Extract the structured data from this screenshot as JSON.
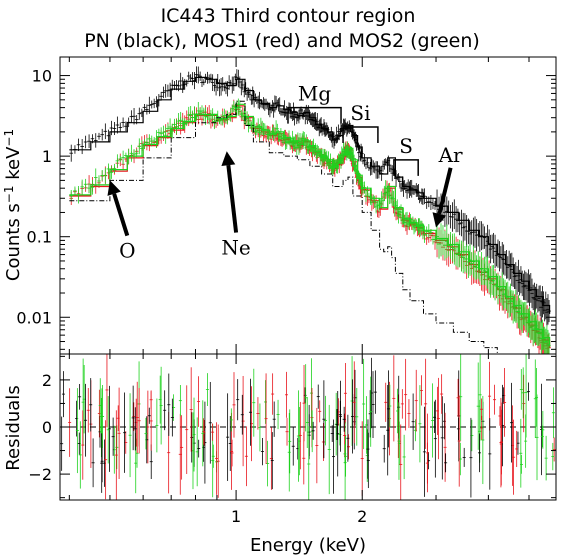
{
  "chart_data": {
    "type": "scatter",
    "title": "IC443 Third contour region",
    "subtitle": "PN (black), MOS1 (red) and MOS2 (green)",
    "xlabel": "Energy (keV)",
    "x_scale": "log",
    "xlim": [
      0.38,
      5.8
    ],
    "x_ticks": [
      1,
      2
    ],
    "upper_panel": {
      "ylabel_main": "Counts s",
      "ylabel_exp1": "−1",
      "ylabel_mid": " keV",
      "ylabel_exp2": "−1",
      "y_scale": "log",
      "ylim": [
        0.0035,
        17
      ],
      "y_ticks": [
        {
          "value": 10,
          "label": "10"
        },
        {
          "value": 1,
          "label": "1"
        },
        {
          "value": 0.1,
          "label": "0.1"
        },
        {
          "value": 0.01,
          "label": "0.01"
        }
      ],
      "series": [
        {
          "name": "PN",
          "color": "#000000",
          "x": [
            0.4,
            0.45,
            0.5,
            0.55,
            0.6,
            0.65,
            0.7,
            0.75,
            0.8,
            0.85,
            0.9,
            0.95,
            1.0,
            1.05,
            1.1,
            1.15,
            1.2,
            1.25,
            1.3,
            1.35,
            1.4,
            1.45,
            1.5,
            1.55,
            1.6,
            1.65,
            1.7,
            1.75,
            1.8,
            1.85,
            1.9,
            1.95,
            2.0,
            2.1,
            2.2,
            2.3,
            2.4,
            2.5,
            2.6,
            2.7,
            2.8,
            3.0,
            3.2,
            3.4,
            3.6,
            3.8,
            4.0,
            4.2,
            4.4,
            4.6,
            4.8,
            5.0,
            5.2,
            5.4,
            5.6
          ],
          "y": [
            1.2,
            1.5,
            2.0,
            2.6,
            3.6,
            5.0,
            6.8,
            8.5,
            9.5,
            9.0,
            8.0,
            7.5,
            9.0,
            6.5,
            5.0,
            4.5,
            4.0,
            4.2,
            3.8,
            3.5,
            3.2,
            3.5,
            3.0,
            2.5,
            2.2,
            2.0,
            1.6,
            1.8,
            2.2,
            2.4,
            1.8,
            1.3,
            0.95,
            0.75,
            0.6,
            0.95,
            0.55,
            0.42,
            0.38,
            0.35,
            0.3,
            0.24,
            0.2,
            0.16,
            0.12,
            0.1,
            0.08,
            0.06,
            0.045,
            0.035,
            0.028,
            0.022,
            0.018,
            0.014,
            0.011
          ]
        },
        {
          "name": "MOS1",
          "color": "#e8141c",
          "x": [
            0.4,
            0.45,
            0.5,
            0.55,
            0.6,
            0.65,
            0.7,
            0.75,
            0.8,
            0.85,
            0.9,
            0.95,
            1.0,
            1.05,
            1.1,
            1.15,
            1.2,
            1.25,
            1.3,
            1.35,
            1.4,
            1.45,
            1.5,
            1.55,
            1.6,
            1.65,
            1.7,
            1.75,
            1.8,
            1.85,
            1.9,
            1.95,
            2.0,
            2.1,
            2.2,
            2.3,
            2.4,
            2.5,
            2.6,
            2.7,
            2.8,
            3.0,
            3.2,
            3.4,
            3.6,
            3.8,
            4.0,
            4.2,
            4.4,
            4.6,
            4.8,
            5.0,
            5.2,
            5.4,
            5.6
          ],
          "y": [
            0.32,
            0.42,
            0.65,
            0.95,
            1.35,
            1.7,
            2.1,
            2.6,
            3.2,
            3.2,
            2.8,
            3.0,
            4.2,
            3.0,
            2.2,
            2.0,
            1.8,
            1.9,
            1.6,
            1.5,
            1.35,
            1.5,
            1.3,
            1.1,
            0.95,
            0.85,
            0.7,
            0.8,
            1.0,
            1.2,
            0.85,
            0.55,
            0.38,
            0.28,
            0.22,
            0.4,
            0.22,
            0.16,
            0.14,
            0.13,
            0.11,
            0.09,
            0.075,
            0.06,
            0.045,
            0.036,
            0.03,
            0.022,
            0.017,
            0.013,
            0.01,
            0.008,
            0.0065,
            0.0052,
            0.0042
          ]
        },
        {
          "name": "MOS2",
          "color": "#1ed21e",
          "x": [
            0.4,
            0.45,
            0.5,
            0.55,
            0.6,
            0.65,
            0.7,
            0.75,
            0.8,
            0.85,
            0.9,
            0.95,
            1.0,
            1.05,
            1.1,
            1.15,
            1.2,
            1.25,
            1.3,
            1.35,
            1.4,
            1.45,
            1.5,
            1.55,
            1.6,
            1.65,
            1.7,
            1.75,
            1.8,
            1.85,
            1.9,
            1.95,
            2.0,
            2.1,
            2.2,
            2.3,
            2.4,
            2.5,
            2.6,
            2.7,
            2.8,
            3.0,
            3.2,
            3.4,
            3.6,
            3.8,
            4.0,
            4.2,
            4.4,
            4.6,
            4.8,
            5.0,
            5.2,
            5.4,
            5.6
          ],
          "y": [
            0.33,
            0.44,
            0.68,
            1.0,
            1.4,
            1.75,
            2.2,
            2.7,
            3.3,
            3.3,
            2.9,
            3.1,
            4.4,
            3.1,
            2.3,
            2.1,
            1.9,
            2.0,
            1.7,
            1.55,
            1.4,
            1.55,
            1.35,
            1.15,
            1.0,
            0.9,
            0.72,
            0.82,
            1.05,
            1.25,
            0.9,
            0.58,
            0.4,
            0.3,
            0.23,
            0.42,
            0.23,
            0.17,
            0.15,
            0.14,
            0.12,
            0.095,
            0.08,
            0.065,
            0.05,
            0.04,
            0.032,
            0.024,
            0.018,
            0.014,
            0.011,
            0.0088,
            0.007,
            0.0056,
            0.0045
          ]
        },
        {
          "name": "",
          "style": "dash-dot",
          "color": "#000000",
          "x": [
            0.4,
            0.5,
            0.6,
            0.7,
            0.8,
            0.9,
            0.95,
            1.0,
            1.05,
            1.1,
            1.2,
            1.3,
            1.4,
            1.5,
            1.6,
            1.7,
            1.8,
            1.85,
            1.9,
            2.0,
            2.1,
            2.2,
            2.25,
            2.3,
            2.35,
            2.4,
            2.5,
            2.6,
            2.8,
            3.0,
            3.3,
            3.6,
            3.9,
            4.2
          ],
          "y": [
            0.28,
            0.5,
            0.95,
            1.7,
            2.6,
            3.0,
            3.3,
            4.8,
            2.4,
            1.5,
            1.1,
            1.0,
            0.9,
            0.75,
            0.6,
            0.42,
            0.5,
            0.55,
            0.32,
            0.2,
            0.12,
            0.07,
            0.065,
            0.075,
            0.055,
            0.035,
            0.022,
            0.016,
            0.011,
            0.0085,
            0.0065,
            0.005,
            0.0042,
            0.0036
          ]
        }
      ],
      "annotations": [
        {
          "label": "Mg",
          "x1": 1.33,
          "x2": 1.78,
          "y": 4.0,
          "kind": "bracket"
        },
        {
          "label": "Si",
          "x1": 1.8,
          "x2": 2.18,
          "y": 2.3,
          "kind": "bracket"
        },
        {
          "label": "S",
          "x1": 2.38,
          "x2": 2.72,
          "y": 0.9,
          "kind": "bracket"
        },
        {
          "label": "O",
          "x": 0.55,
          "y": 0.055,
          "tip_x": 0.5,
          "tip_y": 0.5,
          "kind": "arrow"
        },
        {
          "label": "Ne",
          "x": 1.0,
          "y": 0.06,
          "tip_x": 0.95,
          "tip_y": 1.15,
          "kind": "arrow"
        },
        {
          "label": "Ar",
          "x": 3.25,
          "y": 0.85,
          "tip_x": 3.0,
          "tip_y": 0.13,
          "kind": "arrow"
        }
      ]
    },
    "lower_panel": {
      "ylabel": "Residuals",
      "ylim": [
        -3.1,
        3.1
      ],
      "y_ticks": [
        {
          "value": 2,
          "label": "2"
        },
        {
          "value": 0,
          "label": "0"
        },
        {
          "value": -2,
          "label": "−2"
        }
      ],
      "zero_line": 0
    }
  }
}
